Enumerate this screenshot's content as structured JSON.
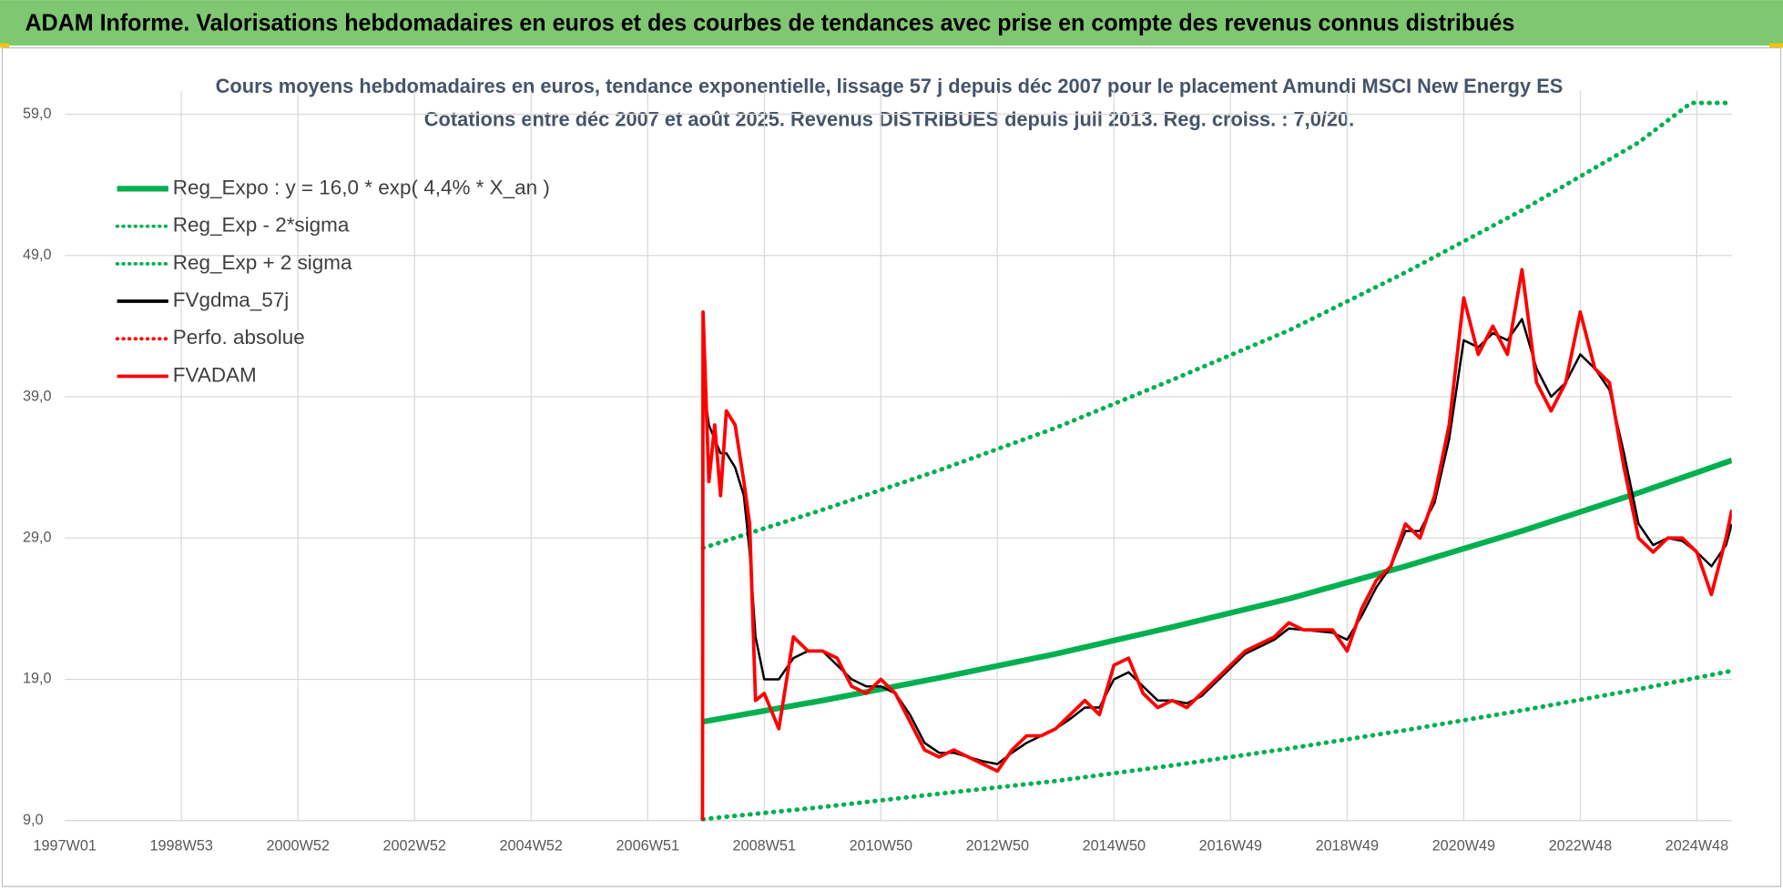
{
  "header": {
    "title": "ADAM Informe. Valorisations hebdomadaires en euros et des courbes de tendances avec prise en compte des revenus connus distribués"
  },
  "chart_data": {
    "type": "line",
    "title": "Cours moyens hebdomadaires en euros, tendance exponentielle, lissage 57 j depuis déc 2007 pour le placement Amundi MSCI New Energy ES",
    "subtitle": "Cotations entre déc 2007 et août 2025. Revenus DISTRIBUES depuis juil 2013. Reg. croiss. : 7,0/20.",
    "xlim": [
      1997,
      2025.6
    ],
    "xticks": [
      {
        "value": 1997,
        "label": "1997W01"
      },
      {
        "value": 1999,
        "label": "1998W53"
      },
      {
        "value": 2001,
        "label": "2000W52"
      },
      {
        "value": 2003,
        "label": "2002W52"
      },
      {
        "value": 2005,
        "label": "2004W52"
      },
      {
        "value": 2007,
        "label": "2006W51"
      },
      {
        "value": 2009,
        "label": "2008W51"
      },
      {
        "value": 2011,
        "label": "2010W50"
      },
      {
        "value": 2013,
        "label": "2012W50"
      },
      {
        "value": 2015,
        "label": "2014W50"
      },
      {
        "value": 2017,
        "label": "2016W49"
      },
      {
        "value": 2019,
        "label": "2018W49"
      },
      {
        "value": 2021,
        "label": "2020W49"
      },
      {
        "value": 2023,
        "label": "2022W48"
      },
      {
        "value": 2025,
        "label": "2024W48"
      }
    ],
    "ylim": [
      9,
      60
    ],
    "yticks": [
      {
        "value": 9,
        "label": "9,0"
      },
      {
        "value": 19,
        "label": "19,0"
      },
      {
        "value": 29,
        "label": "29,0"
      },
      {
        "value": 39,
        "label": "39,0"
      },
      {
        "value": 49,
        "label": "49,0"
      },
      {
        "value": 59,
        "label": "59,0"
      }
    ],
    "grid": true,
    "legend": "top-left",
    "series": [
      {
        "name": "Reg_Expo : y = 16,0 * exp( 4,4% *  X_an )",
        "color": "#00b050",
        "line_style": "solid",
        "x": [
          2007.95,
          2010,
          2012,
          2014,
          2016,
          2018,
          2020,
          2022,
          2024,
          2025.6
        ],
        "values": [
          16.0,
          17.5,
          19.1,
          20.8,
          22.7,
          24.7,
          27.0,
          29.5,
          32.2,
          34.5
        ]
      },
      {
        "name": "Reg_Exp - 2*sigma",
        "color": "#00b050",
        "line_style": "dotted",
        "x": [
          2007.95,
          2010,
          2012,
          2014,
          2016,
          2018,
          2020,
          2022,
          2024,
          2025.6
        ],
        "values": [
          9.1,
          9.96,
          10.9,
          11.8,
          12.9,
          14.1,
          15.4,
          16.8,
          18.3,
          19.6
        ]
      },
      {
        "name": "Reg_Exp + 2 sigma",
        "color": "#00b050",
        "line_style": "dotted",
        "x": [
          2007.95,
          2010,
          2012,
          2014,
          2016,
          2018,
          2020,
          2022,
          2024,
          2024.9,
          2025.6
        ],
        "values": [
          28.3,
          31.0,
          33.8,
          36.8,
          40.2,
          43.7,
          47.8,
          52.2,
          57.0,
          59.8,
          59.8
        ]
      },
      {
        "name": "FVgdma_57j",
        "color": "#000000",
        "line_style": "solid",
        "x": [
          2007.94,
          2007.95,
          2008.05,
          2008.15,
          2008.25,
          2008.35,
          2008.5,
          2008.65,
          2008.75,
          2008.85,
          2009,
          2009.25,
          2009.5,
          2009.75,
          2010,
          2010.25,
          2010.5,
          2010.75,
          2011,
          2011.25,
          2011.5,
          2011.75,
          2012,
          2012.25,
          2012.5,
          2012.75,
          2013,
          2013.25,
          2013.5,
          2013.75,
          2014,
          2014.25,
          2014.5,
          2014.75,
          2015,
          2015.25,
          2015.5,
          2015.75,
          2016,
          2016.25,
          2016.5,
          2016.75,
          2017,
          2017.25,
          2017.5,
          2017.75,
          2018,
          2018.25,
          2018.5,
          2018.75,
          2019,
          2019.25,
          2019.5,
          2019.75,
          2020,
          2020.25,
          2020.5,
          2020.75,
          2021,
          2021.25,
          2021.5,
          2021.75,
          2022,
          2022.25,
          2022.5,
          2022.75,
          2023,
          2023.25,
          2023.5,
          2023.75,
          2024,
          2024.25,
          2024.5,
          2024.75,
          2025,
          2025.25,
          2025.5,
          2025.6
        ],
        "values": [
          null,
          40,
          37,
          36,
          35,
          35,
          34,
          32,
          28,
          22,
          19,
          19,
          20.5,
          21,
          21,
          20,
          19,
          18.5,
          18.5,
          18,
          16.5,
          14.5,
          13.8,
          13.8,
          13.5,
          13.2,
          13,
          13.8,
          14.5,
          15,
          15.5,
          16.2,
          17,
          17,
          19,
          19.5,
          18.5,
          17.5,
          17.5,
          17.3,
          17.8,
          18.8,
          19.8,
          20.8,
          21.3,
          21.8,
          22.6,
          22.5,
          22.4,
          22.3,
          21.8,
          23.5,
          25.5,
          27,
          29.5,
          29.5,
          31.5,
          36,
          43,
          42.5,
          43.5,
          43,
          44.5,
          41,
          39,
          40,
          42,
          41,
          39.5,
          35,
          30,
          28.5,
          29,
          28.8,
          28,
          27,
          28.5,
          30
        ]
      },
      {
        "name": "Perfo. absolue",
        "color": "#ff0000",
        "line_style": "dotted",
        "x": [],
        "values": []
      },
      {
        "name": "FVADAM",
        "color": "#ff0000",
        "line_style": "solid",
        "x": [
          2007.94,
          2007.95,
          2008.05,
          2008.15,
          2008.25,
          2008.35,
          2008.5,
          2008.65,
          2008.75,
          2008.85,
          2009,
          2009.25,
          2009.5,
          2009.75,
          2010,
          2010.25,
          2010.5,
          2010.75,
          2011,
          2011.25,
          2011.5,
          2011.75,
          2012,
          2012.25,
          2012.5,
          2012.75,
          2013,
          2013.25,
          2013.5,
          2013.75,
          2014,
          2014.25,
          2014.5,
          2014.75,
          2015,
          2015.25,
          2015.5,
          2015.75,
          2016,
          2016.25,
          2016.5,
          2016.75,
          2017,
          2017.25,
          2017.5,
          2017.75,
          2018,
          2018.25,
          2018.5,
          2018.75,
          2019,
          2019.25,
          2019.5,
          2019.75,
          2020,
          2020.25,
          2020.5,
          2020.75,
          2021,
          2021.25,
          2021.5,
          2021.75,
          2022,
          2022.25,
          2022.5,
          2022.75,
          2023,
          2023.25,
          2023.5,
          2023.75,
          2024,
          2024.25,
          2024.5,
          2024.75,
          2025,
          2025.25,
          2025.5,
          2025.6
        ],
        "values": [
          9,
          45,
          33,
          37,
          32,
          38,
          37,
          33,
          30,
          17.5,
          18,
          15.5,
          22,
          21,
          21,
          20.5,
          18.5,
          18,
          19,
          18,
          16,
          14,
          13.5,
          14,
          13.5,
          13,
          12.5,
          14,
          15,
          15,
          15.5,
          16.5,
          17.5,
          16.5,
          20,
          20.5,
          18,
          17,
          17.5,
          17,
          18,
          19,
          20,
          21,
          21.5,
          22,
          23,
          22.5,
          22.5,
          22.5,
          21,
          24,
          26,
          27,
          30,
          29,
          32,
          37,
          46,
          42,
          44,
          42,
          48,
          40,
          38,
          40,
          45,
          41,
          40,
          34,
          29,
          28,
          29,
          29,
          28,
          25,
          29,
          31
        ]
      }
    ]
  }
}
